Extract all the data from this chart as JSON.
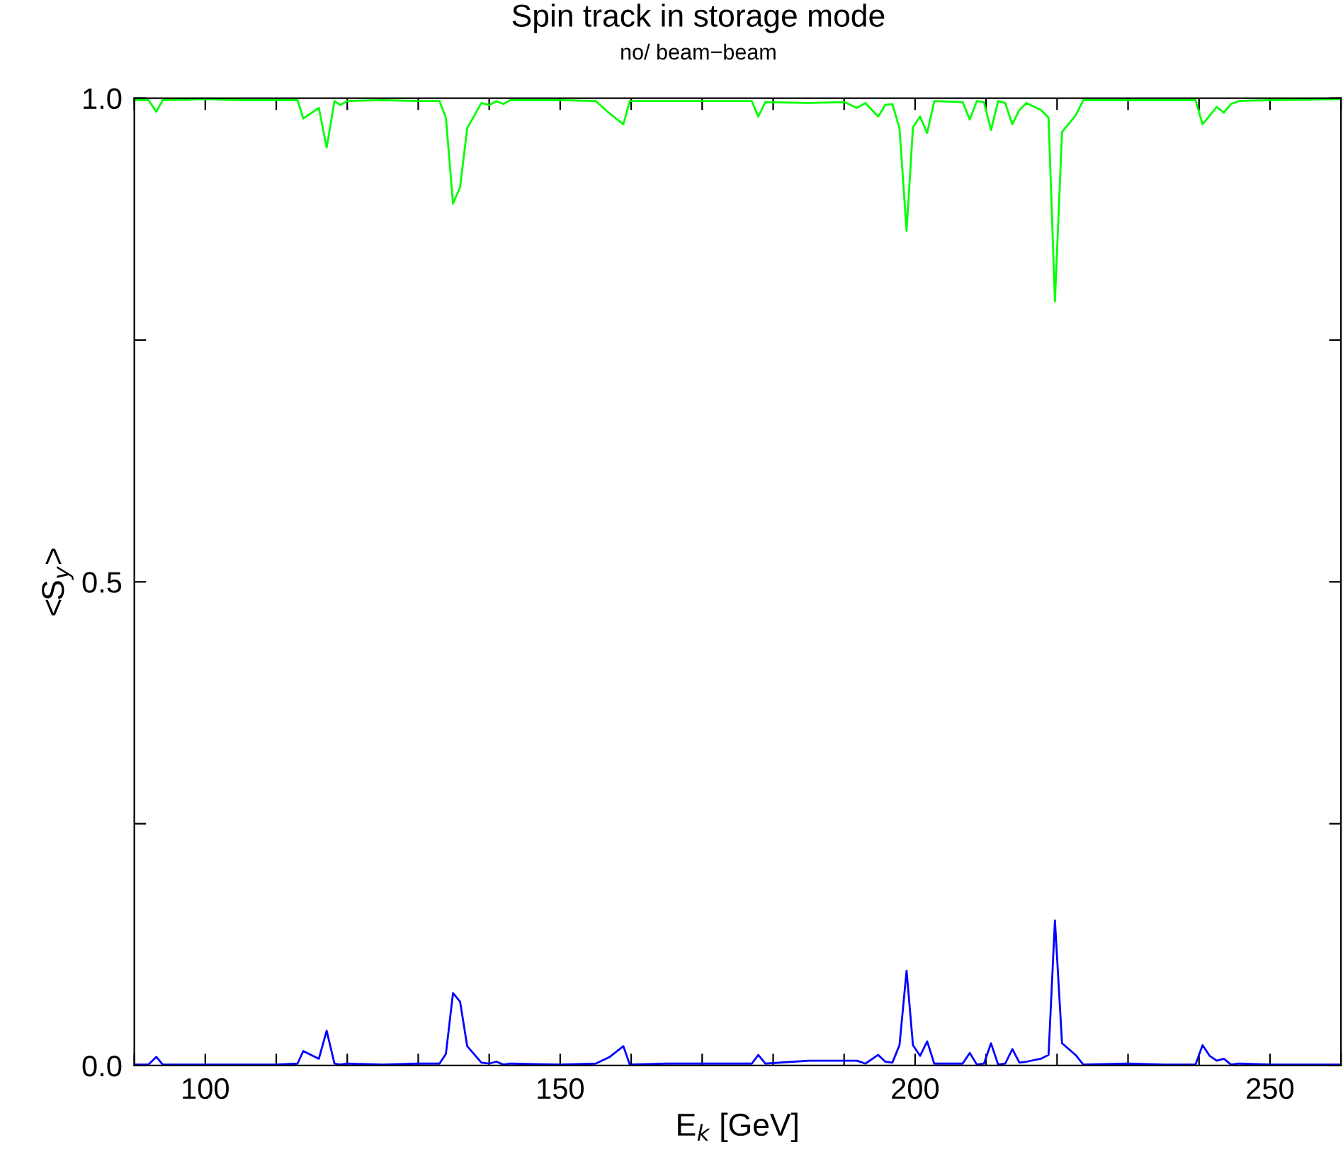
{
  "chart_data": {
    "type": "line",
    "title": "Spin track in storage mode",
    "subtitle": "no/ beam−beam",
    "xlabel": "E$_{k}$ [GeV]",
    "ylabel": "<S$_{y}$>",
    "xlim": [
      90,
      260
    ],
    "ylim": [
      0,
      1
    ],
    "xticks": [
      {
        "value": 90,
        "label": null
      },
      100,
      {
        "value": 110,
        "label": null
      },
      {
        "value": 120,
        "label": null
      },
      {
        "value": 130,
        "label": null
      },
      {
        "value": 140,
        "label": null
      },
      150,
      {
        "value": 160,
        "label": null
      },
      {
        "value": 170,
        "label": null
      },
      {
        "value": 180,
        "label": null
      },
      {
        "value": 190,
        "label": null
      },
      200,
      {
        "value": 210,
        "label": null
      },
      {
        "value": 220,
        "label": null
      },
      {
        "value": 230,
        "label": null
      },
      {
        "value": 240,
        "label": null
      },
      250,
      {
        "value": 260,
        "label": null
      }
    ],
    "yticks": [
      {
        "value": 0,
        "label": "0.0"
      },
      {
        "value": 0.25,
        "label": null
      },
      {
        "value": 0.5,
        "label": "0.5"
      },
      {
        "value": 0.75,
        "label": null
      },
      {
        "value": 1,
        "label": "1.0"
      }
    ],
    "grid": false,
    "legend": false,
    "marker": "none",
    "line_style": "solid",
    "series": [
      {
        "color": "#00ff00",
        "x": [
          90,
          92,
          93.1,
          94,
          100,
          105,
          110,
          113,
          113.8,
          116,
          117.1,
          118.2,
          119,
          120,
          125,
          130,
          133,
          133.9,
          134.9,
          135.9,
          136.9,
          138.9,
          140,
          141,
          142,
          143,
          150,
          155,
          157,
          158.9,
          159.8,
          165,
          170,
          177,
          177.9,
          178.9,
          185,
          190,
          191.8,
          193,
          194.8,
          195.8,
          196.8,
          197.8,
          198.8,
          199.7,
          200.7,
          201.7,
          202.7,
          206.7,
          207.7,
          208.7,
          209.7,
          210.7,
          211.7,
          212.7,
          213.7,
          214.7,
          215.7,
          217.7,
          218.8,
          219.7,
          220.7,
          222.6,
          223.7,
          230,
          235,
          239.5,
          240.5,
          241.5,
          242.5,
          243.5,
          244.5,
          245.6,
          250,
          260
        ],
        "values": [
          0.998,
          0.998,
          0.986,
          0.998,
          0.999,
          0.998,
          0.998,
          0.998,
          0.979,
          0.99,
          0.949,
          0.997,
          0.993,
          0.997,
          0.998,
          0.997,
          0.997,
          0.98,
          0.891,
          0.908,
          0.969,
          0.995,
          0.993,
          0.997,
          0.994,
          0.998,
          0.998,
          0.997,
          0.984,
          0.973,
          0.997,
          0.997,
          0.997,
          0.997,
          0.981,
          0.996,
          0.995,
          0.996,
          0.99,
          0.995,
          0.981,
          0.993,
          0.994,
          0.969,
          0.863,
          0.97,
          0.981,
          0.964,
          0.997,
          0.996,
          0.978,
          0.997,
          0.996,
          0.967,
          0.997,
          0.995,
          0.973,
          0.988,
          0.995,
          0.988,
          0.98,
          0.79,
          0.965,
          0.982,
          0.998,
          0.998,
          0.998,
          0.998,
          0.973,
          0.982,
          0.991,
          0.985,
          0.994,
          0.997,
          0.998,
          0.999
        ]
      },
      {
        "color": "#0000ff",
        "x": [
          90,
          92,
          93.1,
          94,
          100,
          105,
          110,
          113,
          113.8,
          116,
          117.1,
          118.2,
          119,
          120,
          125,
          130,
          133,
          133.9,
          134.9,
          135.9,
          136.9,
          138.9,
          140,
          141,
          142,
          143,
          150,
          155,
          157,
          158.9,
          159.8,
          165,
          170,
          177,
          177.9,
          178.9,
          185,
          190,
          191.8,
          193,
          194.8,
          195.8,
          196.8,
          197.8,
          198.8,
          199.7,
          200.7,
          201.7,
          202.7,
          206.7,
          207.7,
          208.7,
          209.7,
          210.7,
          211.7,
          212.7,
          213.7,
          214.7,
          215.7,
          217.7,
          218.8,
          219.7,
          220.7,
          222.6,
          223.7,
          230,
          235,
          239.5,
          240.5,
          241.5,
          242.5,
          243.5,
          244.5,
          245.6,
          250,
          260
        ],
        "values": [
          0.001,
          0.001,
          0.009,
          0.001,
          0.001,
          0.001,
          0.001,
          0.002,
          0.015,
          0.007,
          0.036,
          0.002,
          0.001,
          0.002,
          0.001,
          0.002,
          0.002,
          0.012,
          0.075,
          0.066,
          0.02,
          0.003,
          0.002,
          0.004,
          0.001,
          0.002,
          0.001,
          0.002,
          0.009,
          0.02,
          0.001,
          0.002,
          0.002,
          0.002,
          0.011,
          0.002,
          0.005,
          0.005,
          0.005,
          0.002,
          0.011,
          0.004,
          0.003,
          0.021,
          0.098,
          0.021,
          0.01,
          0.025,
          0.002,
          0.002,
          0.013,
          0.001,
          0.002,
          0.023,
          0.001,
          0.002,
          0.017,
          0.003,
          0.004,
          0.007,
          0.011,
          0.15,
          0.023,
          0.011,
          0.001,
          0.002,
          0.001,
          0.001,
          0.021,
          0.01,
          0.005,
          0.007,
          0.001,
          0.002,
          0.001,
          0.001
        ]
      }
    ]
  }
}
